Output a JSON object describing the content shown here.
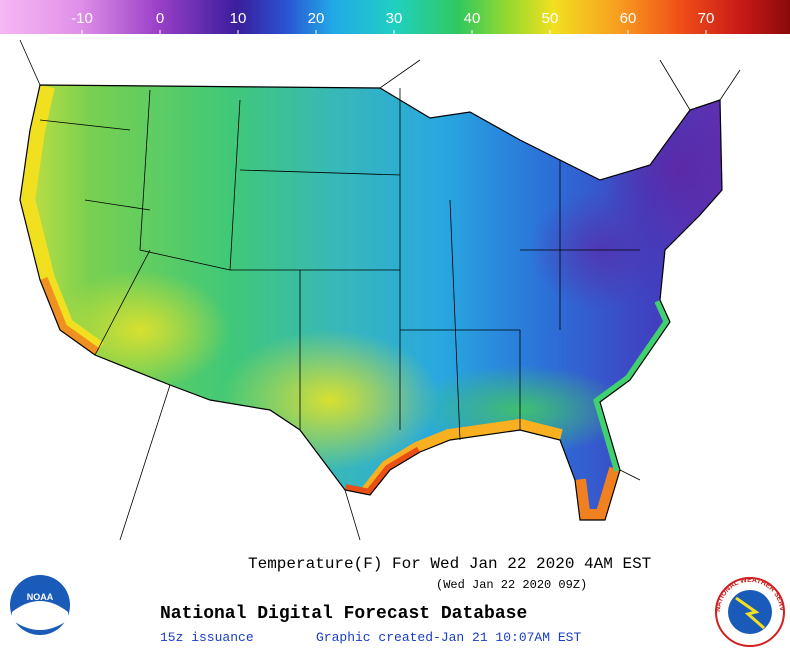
{
  "colorbar": {
    "ticks": [
      -10,
      0,
      10,
      20,
      30,
      40,
      50,
      60,
      70
    ]
  },
  "title": "Temperature(F) For Wed Jan 22 2020  4AM EST",
  "subtitle": "(Wed Jan 22 2020 09Z)",
  "product": "National Digital Forecast Database",
  "issuance": "15z issuance",
  "created": "Graphic created-Jan 21 10:07AM EST",
  "logos": {
    "left": "NOAA",
    "right": "NATIONAL WEATHER SERVICE"
  }
}
